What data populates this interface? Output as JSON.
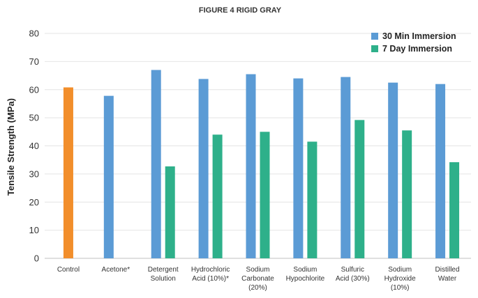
{
  "chart_data": {
    "type": "bar",
    "title": "FIGURE 4 RIGID GRAY",
    "xlabel": "",
    "ylabel": "Tensile Strength (MPa)",
    "ylim": [
      0,
      80
    ],
    "yticks": [
      0,
      10,
      20,
      30,
      40,
      50,
      60,
      70,
      80
    ],
    "grid": true,
    "legend_position": "top-right",
    "categories": [
      [
        "Control"
      ],
      [
        "Acetone*"
      ],
      [
        "Detergent",
        "Solution"
      ],
      [
        "Hydrochloric",
        "Acid (10%)*"
      ],
      [
        "Sodium",
        "Carbonate",
        "(20%)"
      ],
      [
        "Sodium",
        "Hypochlorite"
      ],
      [
        "Sulfuric",
        "Acid (30%)"
      ],
      [
        "Sodium",
        "Hydroxide",
        "(10%)"
      ],
      [
        "Distilled",
        "Water"
      ]
    ],
    "control": {
      "value": 60.8,
      "color": "#f28e2b"
    },
    "series": [
      {
        "name": "30 Min Immersion",
        "color": "#5b9bd5",
        "values": [
          null,
          57.8,
          67.0,
          63.8,
          65.5,
          64.0,
          64.5,
          62.5,
          62.0
        ]
      },
      {
        "name": "7 Day Immersion",
        "color": "#2eb08a",
        "values": [
          null,
          null,
          32.7,
          44.0,
          45.0,
          41.5,
          49.2,
          45.5,
          34.2
        ]
      }
    ]
  }
}
